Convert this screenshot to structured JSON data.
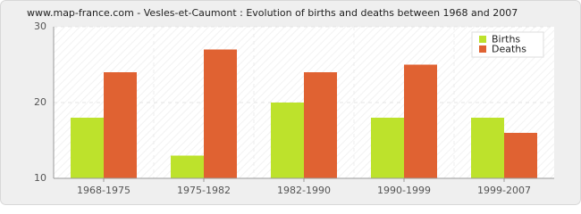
{
  "chart_data": {
    "type": "grouped_bar",
    "title": "www.map-france.com - Vesles-et-Caumont : Evolution of births and deaths between 1968 and 2007",
    "categories": [
      "1968-1975",
      "1975-1982",
      "1982-1990",
      "1990-1999",
      "1999-2007"
    ],
    "series": [
      {
        "name": "Births",
        "color": "#bde22c",
        "values": [
          18,
          13,
          20,
          18,
          18
        ]
      },
      {
        "name": "Deaths",
        "color": "#e06232",
        "values": [
          24,
          27,
          24,
          25,
          16
        ]
      }
    ],
    "ylim": [
      10,
      30
    ],
    "yticks": [
      10,
      20,
      30
    ],
    "grid": true,
    "legend": "top-right"
  }
}
